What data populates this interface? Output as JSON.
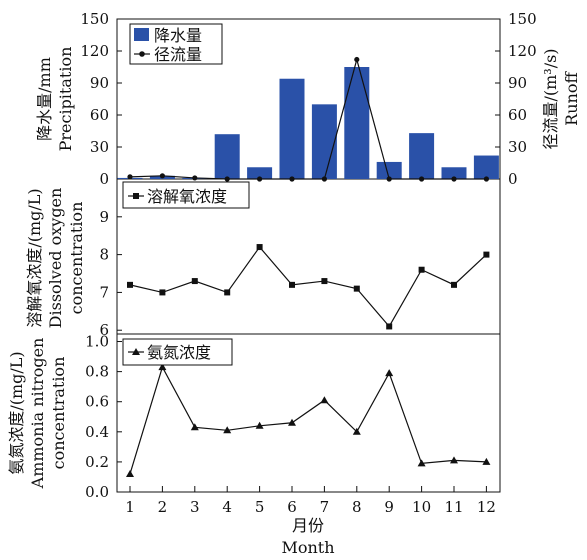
{
  "chart_data": {
    "type": "bar+line",
    "months": [
      1,
      2,
      3,
      4,
      5,
      6,
      7,
      8,
      9,
      10,
      11,
      12
    ],
    "xlabel_cn": "月份",
    "xlabel_en": "Month",
    "panels": [
      {
        "id": "precip-runoff",
        "ylabel_left_cn": "降水量/mm",
        "ylabel_left_en": "Precipitation",
        "ylabel_right_cn": "径流量/(m³/s)",
        "ylabel_right_en": "Runoff",
        "ylim_left": [
          0,
          150
        ],
        "yticks_left": [
          "0",
          "30",
          "60",
          "90",
          "120",
          "150"
        ],
        "ylim_right": [
          0,
          150
        ],
        "yticks_right": [
          "0",
          "30",
          "60",
          "90",
          "120",
          "150"
        ],
        "legend": {
          "bar": "降水量",
          "line": "径流量"
        },
        "bar_color": "#2a51a8",
        "precipitation": [
          1,
          3,
          1,
          42,
          11,
          94,
          70,
          105,
          16,
          43,
          11,
          22
        ],
        "runoff": [
          2,
          3,
          1,
          0,
          0,
          0,
          0,
          112,
          0,
          0,
          0,
          0
        ]
      },
      {
        "id": "dissolved-oxygen",
        "ylabel_cn": "溶解氧浓度/(mg/L)",
        "ylabel_en1": "Dissolved oxygen",
        "ylabel_en2": "concentration",
        "ylim": [
          5.9,
          10.0
        ],
        "yticks": [
          "6",
          "7",
          "8",
          "9"
        ],
        "legend": "溶解氧浓度",
        "values": [
          7.2,
          7.0,
          7.3,
          7.0,
          8.2,
          7.2,
          7.3,
          7.1,
          6.1,
          7.6,
          7.2,
          8.0
        ]
      },
      {
        "id": "ammonia-nitrogen",
        "ylabel_cn": "氨氮浓度/(mg/L)",
        "ylabel_en1": "Ammonia nitrogen",
        "ylabel_en2": "concentration",
        "ylim": [
          0,
          1.05
        ],
        "yticks": [
          "0.0",
          "0.2",
          "0.4",
          "0.6",
          "0.8",
          "1.0"
        ],
        "legend": "氨氮浓度",
        "values": [
          0.12,
          0.83,
          0.43,
          0.41,
          0.44,
          0.46,
          0.61,
          0.4,
          0.79,
          0.19,
          0.21,
          0.2
        ]
      }
    ]
  }
}
